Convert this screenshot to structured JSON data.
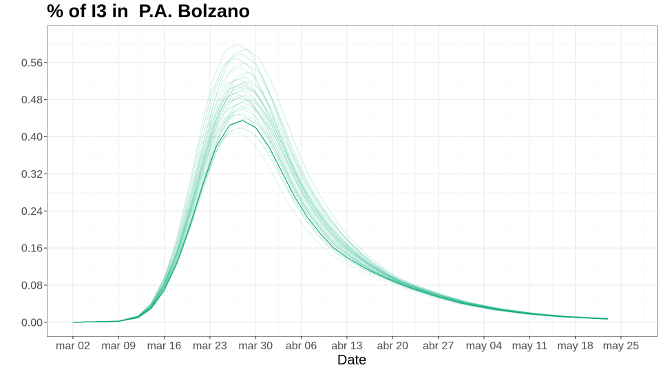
{
  "chart_data": {
    "type": "line",
    "title": "% of I3 in  P.A. Bolzano",
    "xlabel": "Date",
    "ylabel": "",
    "x_ticks": [
      "mar 02",
      "mar 09",
      "mar 16",
      "mar 23",
      "mar 30",
      "abr 06",
      "abr 13",
      "abr 20",
      "abr 27",
      "may 04",
      "may 11",
      "may 18",
      "may 25"
    ],
    "y_ticks": [
      "0.00",
      "0.08",
      "0.16",
      "0.24",
      "0.32",
      "0.40",
      "0.48",
      "0.56"
    ],
    "xlim": [
      -4,
      89.5
    ],
    "ylim": [
      -0.03,
      0.64
    ],
    "grid": true,
    "colors": {
      "line": "#1db58a",
      "main_line": "#0fa57c"
    },
    "x_day_offsets_from_mar02": [
      0,
      7,
      14,
      21,
      28,
      35,
      42,
      49,
      56,
      63,
      70,
      77,
      84
    ],
    "series": [
      {
        "role": "main",
        "peak": 0.435,
        "x": [
          0,
          7,
          10,
          12,
          14,
          16,
          18,
          20,
          22,
          24,
          26,
          28,
          30,
          32,
          34,
          36,
          38,
          40,
          42,
          45,
          48,
          52,
          56,
          60,
          65,
          70,
          75,
          82
        ],
        "values": [
          0.0,
          0.002,
          0.01,
          0.03,
          0.07,
          0.13,
          0.21,
          0.3,
          0.38,
          0.425,
          0.435,
          0.42,
          0.38,
          0.325,
          0.27,
          0.225,
          0.19,
          0.16,
          0.14,
          0.115,
          0.095,
          0.073,
          0.055,
          0.04,
          0.027,
          0.018,
          0.012,
          0.007
        ]
      }
    ],
    "ensemble_peaks": [
      0.41,
      0.42,
      0.44,
      0.45,
      0.46,
      0.465,
      0.47,
      0.475,
      0.48,
      0.485,
      0.49,
      0.495,
      0.5,
      0.505,
      0.51,
      0.515,
      0.52,
      0.525,
      0.53,
      0.54,
      0.55,
      0.56,
      0.57,
      0.58,
      0.59,
      0.6,
      0.45,
      0.47,
      0.49,
      0.51
    ]
  }
}
